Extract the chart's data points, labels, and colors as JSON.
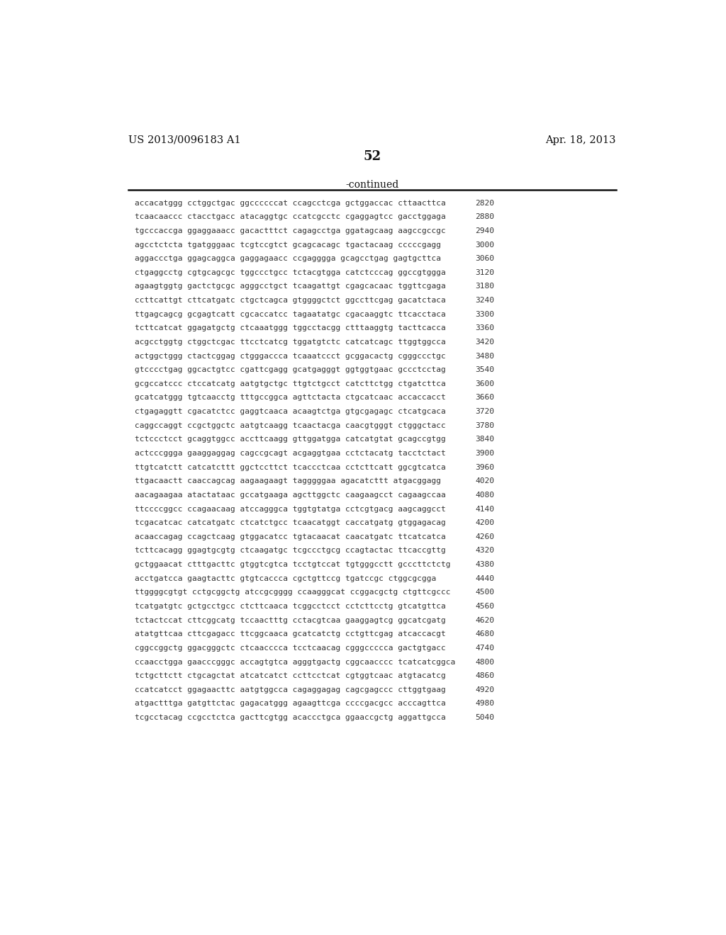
{
  "background_color": "#ffffff",
  "header_left": "US 2013/0096183 A1",
  "header_right": "Apr. 18, 2013",
  "page_number": "52",
  "continued_label": "-continued",
  "sequence_lines": [
    [
      "accacatggg cctggctgac ggccccccat ccagcctcga gctggaccac cttaacttca",
      "2820"
    ],
    [
      "tcaacaaccc ctacctgacc atacaggtgc ccatcgcctc cgaggagtcc gacctggaga",
      "2880"
    ],
    [
      "tgcccaccga ggaggaaacc gacactttct cagagcctga ggatagcaag aagccgccgc",
      "2940"
    ],
    [
      "agcctctcta tgatgggaac tcgtccgtct gcagcacagc tgactacaag cccccgagg",
      "3000"
    ],
    [
      "aggaccctga ggagcaggca gaggagaacc ccgagggga gcagcctgag gagtgcttca",
      "3060"
    ],
    [
      "ctgaggcctg cgtgcagcgc tggccctgcc tctacgtgga catctcccag ggccgtggga",
      "3120"
    ],
    [
      "agaagtggtg gactctgcgc agggcctgct tcaagattgt cgagcacaac tggttcgaga",
      "3180"
    ],
    [
      "ccttcattgt cttcatgatc ctgctcagca gtggggctct ggccttcgag gacatctaca",
      "3240"
    ],
    [
      "ttgagcagcg gcgagtcatt cgcaccatcc tagaatatgc cgacaaggtc ttcacctaca",
      "3300"
    ],
    [
      "tcttcatcat ggagatgctg ctcaaatggg tggcctacgg ctttaaggtg tacttcacca",
      "3360"
    ],
    [
      "acgcctggtg ctggctcgac ttcctcatcg tggatgtctc catcatcagc ttggtggcca",
      "3420"
    ],
    [
      "actggctggg ctactcggag ctgggaccca tcaaatccct gcggacactg cgggccctgc",
      "3480"
    ],
    [
      "gtcccctgag ggcactgtcc cgattcgagg gcatgagggt ggtggtgaac gccctcctag",
      "3540"
    ],
    [
      "gcgccatccc ctccatcatg aatgtgctgc ttgtctgcct catcttctgg ctgatcttca",
      "3600"
    ],
    [
      "gcatcatggg tgtcaacctg tttgccggca agttctacta ctgcatcaac accaccacct",
      "3660"
    ],
    [
      "ctgagaggtt cgacatctcc gaggtcaaca acaagtctga gtgcgagagc ctcatgcaca",
      "3720"
    ],
    [
      "caggccaggt ccgctggctc aatgtcaagg tcaactacga caacgtgggt ctgggctacc",
      "3780"
    ],
    [
      "tctccctcct gcaggtggcc accttcaagg gttggatgga catcatgtat gcagccgtgg",
      "3840"
    ],
    [
      "actcccggga gaaggaggag cagccgcagt acgaggtgaa cctctacatg tacctctact",
      "3900"
    ],
    [
      "ttgtcatctt catcatcttt ggctccttct tcaccctcaa cctcttcatt ggcgtcatca",
      "3960"
    ],
    [
      "ttgacaactt caaccagcag aagaagaagt tagggggaa agacatcttt atgacggagg",
      "4020"
    ],
    [
      "aacagaagaa atactataac gccatgaaga agcttggctc caagaagcct cagaagccaa",
      "4080"
    ],
    [
      "ttccccggcc ccagaacaag atccagggca tggtgtatga cctcgtgacg aagcaggcct",
      "4140"
    ],
    [
      "tcgacatcac catcatgatc ctcatctgcc tcaacatggt caccatgatg gtggagacag",
      "4200"
    ],
    [
      "acaaccagag ccagctcaag gtggacatcc tgtacaacat caacatgatc ttcatcatca",
      "4260"
    ],
    [
      "tcttcacagg ggagtgcgtg ctcaagatgc tcgccctgcg ccagtactac ttcaccgttg",
      "4320"
    ],
    [
      "gctggaacat ctttgacttc gtggtcgtca tcctgtccat tgtgggcctt gcccttctctg",
      "4380"
    ],
    [
      "acctgatcca gaagtacttc gtgtcaccca cgctgttccg tgatccgc ctggcgcgga",
      "4440"
    ],
    [
      "ttggggcgtgt cctgcggctg atccgcgggg ccaagggcat ccggacgctg ctgttcgccc",
      "4500"
    ],
    [
      "tcatgatgtc gctgcctgcc ctcttcaaca tcggcctcct cctcttcctg gtcatgttca",
      "4560"
    ],
    [
      "tctactccat cttcggcatg tccaactttg cctacgtcaa gaaggagtcg ggcatcgatg",
      "4620"
    ],
    [
      "atatgttcaa cttcgagacc ttcggcaaca gcatcatctg cctgttcgag atcaccacgt",
      "4680"
    ],
    [
      "cggccggctg ggacgggctc ctcaacccca tcctcaacag cgggccccca gactgtgacc",
      "4740"
    ],
    [
      "ccaacctgga gaacccgggc accagtgtca agggtgactg cggcaacccc tcatcatcggca",
      "4800"
    ],
    [
      "tctgcttctt ctgcagctat atcatcatct ccttcctcat cgtggtcaac atgtacatcg",
      "4860"
    ],
    [
      "ccatcatcct ggagaacttc aatgtggcca cagaggagag cagcgagccc cttggtgaag",
      "4920"
    ],
    [
      "atgactttga gatgttctac gagacatggg agaagttcga ccccgacgcc acccagttca",
      "4980"
    ],
    [
      "tcgcctacag ccgcctctca gacttcgtgg acaccctgca ggaaccgctg aggattgcca",
      "5040"
    ]
  ]
}
